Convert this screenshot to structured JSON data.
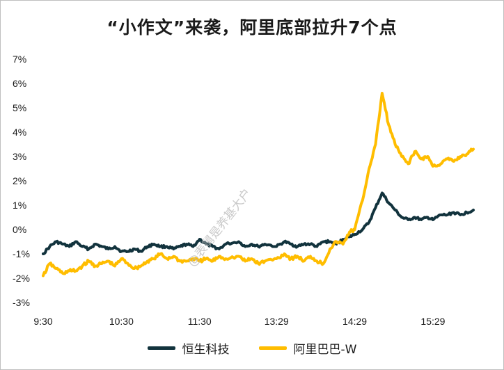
{
  "colors": {
    "hstech": "#12333d",
    "alibaba": "#ffbd00"
  },
  "watermark": "@表舅是养基大户",
  "chart_data": {
    "type": "line",
    "title": "“小作文”来袭，阿里底部拉升7个点",
    "xlabel": "",
    "ylabel": "",
    "ylim": [
      -3,
      7
    ],
    "yticks": [
      "-3%",
      "-2%",
      "-1%",
      "0%",
      "1%",
      "2%",
      "3%",
      "4%",
      "5%",
      "6%",
      "7%"
    ],
    "yunit": "%",
    "xtick_labels": [
      "9:30",
      "10:30",
      "11:30",
      "13:29",
      "14:29",
      "15:29"
    ],
    "legend_position": "bottom",
    "grid": false,
    "series": [
      {
        "name": "恒生科技",
        "color_key": "hstech",
        "points": [
          [
            "9:30",
            -1.0
          ],
          [
            "9:35",
            -0.7
          ],
          [
            "9:40",
            -0.5
          ],
          [
            "9:45",
            -0.6
          ],
          [
            "9:50",
            -0.7
          ],
          [
            "9:55",
            -0.5
          ],
          [
            "10:00",
            -0.7
          ],
          [
            "10:05",
            -0.8
          ],
          [
            "10:10",
            -0.6
          ],
          [
            "10:15",
            -0.7
          ],
          [
            "10:20",
            -0.8
          ],
          [
            "10:25",
            -0.7
          ],
          [
            "10:30",
            -0.9
          ],
          [
            "10:35",
            -0.9
          ],
          [
            "10:40",
            -0.8
          ],
          [
            "10:45",
            -0.9
          ],
          [
            "10:50",
            -0.7
          ],
          [
            "10:55",
            -0.6
          ],
          [
            "11:00",
            -0.7
          ],
          [
            "11:05",
            -0.7
          ],
          [
            "11:10",
            -0.8
          ],
          [
            "11:15",
            -0.7
          ],
          [
            "11:20",
            -0.6
          ],
          [
            "11:25",
            -0.7
          ],
          [
            "11:30",
            -0.4
          ],
          [
            "11:35",
            -0.6
          ],
          [
            "11:40",
            -0.7
          ],
          [
            "11:45",
            -0.8
          ],
          [
            "11:50",
            -0.6
          ],
          [
            "13:00",
            -0.5
          ],
          [
            "13:05",
            -0.7
          ],
          [
            "13:10",
            -0.6
          ],
          [
            "13:15",
            -0.7
          ],
          [
            "13:20",
            -0.6
          ],
          [
            "13:29",
            -0.7
          ],
          [
            "13:35",
            -0.5
          ],
          [
            "13:40",
            -0.6
          ],
          [
            "13:45",
            -0.7
          ],
          [
            "13:50",
            -0.6
          ],
          [
            "13:55",
            -0.6
          ],
          [
            "14:00",
            -0.7
          ],
          [
            "14:05",
            -0.5
          ],
          [
            "14:10",
            -0.5
          ],
          [
            "14:15",
            -0.6
          ],
          [
            "14:20",
            -0.4
          ],
          [
            "14:25",
            -0.3
          ],
          [
            "14:29",
            -0.2
          ],
          [
            "14:35",
            0.0
          ],
          [
            "14:40",
            0.3
          ],
          [
            "14:45",
            0.9
          ],
          [
            "14:50",
            1.5
          ],
          [
            "14:55",
            1.1
          ],
          [
            "15:00",
            0.8
          ],
          [
            "15:05",
            0.5
          ],
          [
            "15:10",
            0.4
          ],
          [
            "15:15",
            0.5
          ],
          [
            "15:20",
            0.4
          ],
          [
            "15:25",
            0.5
          ],
          [
            "15:29",
            0.4
          ],
          [
            "15:35",
            0.6
          ],
          [
            "15:40",
            0.6
          ],
          [
            "15:45",
            0.7
          ],
          [
            "15:50",
            0.6
          ],
          [
            "15:55",
            0.7
          ],
          [
            "16:00",
            0.8
          ]
        ]
      },
      {
        "name": "阿里巴巴-W",
        "color_key": "alibaba",
        "points": [
          [
            "9:30",
            -1.9
          ],
          [
            "9:35",
            -1.4
          ],
          [
            "9:40",
            -1.6
          ],
          [
            "9:45",
            -1.8
          ],
          [
            "9:50",
            -1.7
          ],
          [
            "9:55",
            -1.7
          ],
          [
            "10:00",
            -1.5
          ],
          [
            "10:05",
            -1.3
          ],
          [
            "10:10",
            -1.5
          ],
          [
            "10:15",
            -1.4
          ],
          [
            "10:20",
            -1.3
          ],
          [
            "10:25",
            -1.5
          ],
          [
            "10:30",
            -1.2
          ],
          [
            "10:35",
            -1.4
          ],
          [
            "10:40",
            -1.6
          ],
          [
            "10:45",
            -1.5
          ],
          [
            "10:50",
            -1.3
          ],
          [
            "10:55",
            -1.2
          ],
          [
            "11:00",
            -1.0
          ],
          [
            "11:05",
            -1.2
          ],
          [
            "11:10",
            -1.1
          ],
          [
            "11:15",
            -1.3
          ],
          [
            "11:20",
            -1.3
          ],
          [
            "11:25",
            -1.2
          ],
          [
            "11:30",
            -1.3
          ],
          [
            "11:35",
            -1.2
          ],
          [
            "11:40",
            -1.3
          ],
          [
            "11:45",
            -1.1
          ],
          [
            "11:50",
            -1.2
          ],
          [
            "13:00",
            -1.1
          ],
          [
            "13:05",
            -1.3
          ],
          [
            "13:10",
            -1.2
          ],
          [
            "13:15",
            -1.4
          ],
          [
            "13:20",
            -1.3
          ],
          [
            "13:29",
            -1.2
          ],
          [
            "13:35",
            -1.0
          ],
          [
            "13:40",
            -1.2
          ],
          [
            "13:45",
            -1.1
          ],
          [
            "13:50",
            -1.3
          ],
          [
            "13:55",
            -1.1
          ],
          [
            "14:00",
            -1.3
          ],
          [
            "14:05",
            -1.4
          ],
          [
            "14:10",
            -0.8
          ],
          [
            "14:15",
            -0.5
          ],
          [
            "14:20",
            -0.6
          ],
          [
            "14:25",
            -0.1
          ],
          [
            "14:29",
            0.0
          ],
          [
            "14:35",
            1.2
          ],
          [
            "14:40",
            2.5
          ],
          [
            "14:45",
            3.5
          ],
          [
            "14:50",
            5.6
          ],
          [
            "14:55",
            4.3
          ],
          [
            "15:00",
            3.5
          ],
          [
            "15:05",
            3.0
          ],
          [
            "15:10",
            2.7
          ],
          [
            "15:15",
            3.2
          ],
          [
            "15:20",
            2.9
          ],
          [
            "15:25",
            3.0
          ],
          [
            "15:29",
            2.6
          ],
          [
            "15:35",
            2.7
          ],
          [
            "15:40",
            2.9
          ],
          [
            "15:45",
            2.8
          ],
          [
            "15:50",
            3.0
          ],
          [
            "15:55",
            3.1
          ],
          [
            "16:00",
            3.3
          ]
        ]
      }
    ]
  }
}
